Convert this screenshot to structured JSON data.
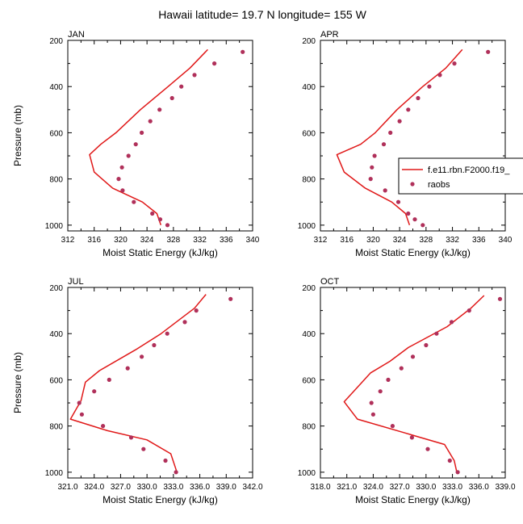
{
  "figure": {
    "title": "Hawaii  latitude= 19.7 N longitude= 155 W"
  },
  "colors": {
    "model_line": "#e01818",
    "raobs_dot": "#b0305a",
    "axis": "#000000"
  },
  "legend": {
    "entries": [
      {
        "label": "f.e11.rbn.F2000.f19_",
        "marker": "line"
      },
      {
        "label": "raobs",
        "marker": "dot"
      }
    ],
    "placement": "right of APR panel"
  },
  "chart_data": [
    {
      "type": "line",
      "panel": "JAN",
      "title": "JAN",
      "xlabel": "Moist Static Energy (kJ/kg)",
      "ylabel": "Pressure (mb)",
      "xlim": [
        312,
        340
      ],
      "ylim": [
        200,
        1025
      ],
      "y_reversed": true,
      "xticks": [
        "312",
        "316",
        "320",
        "324",
        "328",
        "332",
        "336",
        "340"
      ],
      "xtick_values": [
        312,
        316,
        320,
        324,
        328,
        332,
        336,
        340
      ],
      "yticks": [
        200,
        400,
        600,
        800,
        1000
      ],
      "series": [
        {
          "name": "f.e11.rbn.F2000.f19_",
          "kind": "line",
          "x": [
            333.2,
            330.5,
            327.2,
            323.0,
            319.3,
            317.0,
            315.3,
            316.0,
            318.8,
            323.3,
            325.5,
            326.1
          ],
          "y": [
            240,
            320,
            400,
            500,
            600,
            650,
            695,
            770,
            840,
            900,
            950,
            1000
          ]
        },
        {
          "name": "raobs",
          "kind": "scatter",
          "x": [
            338.5,
            334.2,
            331.2,
            329.2,
            327.8,
            325.9,
            324.5,
            323.2,
            322.3,
            321.2,
            320.2,
            319.7,
            320.3,
            322.0,
            324.8,
            326.0,
            327.1
          ],
          "y": [
            250,
            300,
            350,
            400,
            450,
            500,
            550,
            600,
            650,
            700,
            750,
            800,
            850,
            900,
            950,
            975,
            1000
          ]
        }
      ]
    },
    {
      "type": "line",
      "panel": "APR",
      "title": "APR",
      "xlabel": "Moist Static Energy (kJ/kg)",
      "ylabel": "",
      "xlim": [
        312,
        340
      ],
      "ylim": [
        200,
        1025
      ],
      "y_reversed": true,
      "xticks": [
        "312",
        "316",
        "320",
        "324",
        "328",
        "332",
        "336",
        "340"
      ],
      "xtick_values": [
        312,
        316,
        320,
        324,
        328,
        332,
        336,
        340
      ],
      "yticks": [
        200,
        400,
        600,
        800,
        1000
      ],
      "series": [
        {
          "name": "f.e11.rbn.F2000.f19_",
          "kind": "line",
          "x": [
            333.5,
            331.0,
            327.5,
            323.6,
            320.3,
            318.1,
            314.5,
            315.6,
            318.8,
            322.8,
            324.9,
            325.5
          ],
          "y": [
            240,
            320,
            400,
            500,
            600,
            650,
            695,
            770,
            840,
            900,
            950,
            1000
          ]
        },
        {
          "name": "raobs",
          "kind": "scatter",
          "x": [
            337.4,
            332.3,
            330.1,
            328.5,
            326.8,
            325.3,
            324.0,
            322.6,
            321.6,
            320.2,
            319.8,
            319.6,
            321.8,
            323.8,
            325.3,
            326.3,
            327.5
          ],
          "y": [
            250,
            300,
            350,
            400,
            450,
            500,
            550,
            600,
            650,
            700,
            750,
            800,
            850,
            900,
            950,
            975,
            1000
          ]
        }
      ]
    },
    {
      "type": "line",
      "panel": "JUL",
      "title": "JUL",
      "xlabel": "Moist Static Energy (kJ/kg)",
      "ylabel": "Pressure (mb)",
      "xlim": [
        321,
        342
      ],
      "ylim": [
        200,
        1025
      ],
      "y_reversed": true,
      "xticks": [
        "321.0",
        "324.0",
        "327.0",
        "330.0",
        "333.0",
        "336.0",
        "339.0",
        "342.0"
      ],
      "xtick_values": [
        321,
        324,
        327,
        330,
        333,
        336,
        339,
        342
      ],
      "yticks": [
        200,
        400,
        600,
        800,
        1000
      ],
      "series": [
        {
          "name": "f.e11.rbn.F2000.f19_",
          "kind": "line",
          "x": [
            336.7,
            335.4,
            331.6,
            328.7,
            324.6,
            323.0,
            322.5,
            321.3,
            325.5,
            330.0,
            332.7,
            333.4
          ],
          "y": [
            230,
            290,
            400,
            470,
            560,
            610,
            690,
            770,
            820,
            860,
            920,
            1000
          ]
        },
        {
          "name": "raobs",
          "kind": "scatter",
          "x": [
            339.5,
            335.6,
            334.3,
            332.3,
            330.8,
            329.4,
            327.8,
            325.7,
            324.0,
            322.3,
            322.6,
            325.0,
            328.2,
            329.6,
            332.1,
            333.3
          ],
          "y": [
            250,
            300,
            350,
            400,
            450,
            500,
            550,
            600,
            650,
            700,
            750,
            800,
            850,
            900,
            950,
            1000
          ]
        }
      ]
    },
    {
      "type": "line",
      "panel": "OCT",
      "title": "OCT",
      "xlabel": "Moist Static Energy (kJ/kg)",
      "ylabel": "",
      "xlim": [
        318,
        339
      ],
      "ylim": [
        200,
        1025
      ],
      "y_reversed": true,
      "xticks": [
        "318.0",
        "321.0",
        "324.0",
        "327.0",
        "330.0",
        "333.0",
        "336.0",
        "339.0"
      ],
      "xtick_values": [
        318,
        321,
        324,
        327,
        330,
        333,
        336,
        339
      ],
      "yticks": [
        200,
        400,
        600,
        800,
        1000
      ],
      "series": [
        {
          "name": "f.e11.rbn.F2000.f19_",
          "kind": "line",
          "x": [
            336.6,
            335.1,
            332.4,
            328.0,
            325.9,
            323.7,
            322.5,
            320.7,
            322.2,
            327.6,
            332.1,
            333.2,
            333.5
          ],
          "y": [
            235,
            290,
            370,
            460,
            520,
            570,
            620,
            695,
            770,
            830,
            880,
            950,
            1000
          ]
        },
        {
          "name": "raobs",
          "kind": "scatter",
          "x": [
            338.4,
            334.9,
            332.9,
            331.2,
            330.0,
            328.5,
            327.2,
            325.7,
            324.8,
            323.8,
            324.0,
            326.2,
            328.4,
            330.2,
            332.7,
            333.6
          ],
          "y": [
            250,
            300,
            350,
            400,
            450,
            500,
            550,
            600,
            650,
            700,
            750,
            800,
            850,
            900,
            950,
            1000
          ]
        }
      ]
    }
  ]
}
